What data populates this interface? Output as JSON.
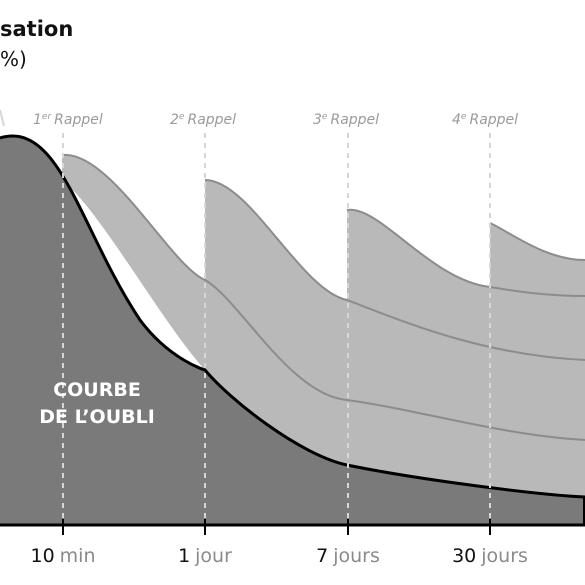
{
  "chart_data": {
    "type": "area",
    "title_visible": "sation",
    "ylabel_visible": "%)",
    "x_ticks": [
      {
        "value": "10",
        "unit": "min"
      },
      {
        "value": "1",
        "unit": "jour"
      },
      {
        "value": "7",
        "unit": "jours"
      },
      {
        "value": "30",
        "unit": "jours"
      }
    ],
    "reminders": [
      {
        "num": "1",
        "sup": "er",
        "word": "Rappel"
      },
      {
        "num": "2",
        "sup": "e",
        "word": "Rappel"
      },
      {
        "num": "3",
        "sup": "e",
        "word": "Rappel"
      },
      {
        "num": "4",
        "sup": "e",
        "word": "Rappel"
      }
    ],
    "series_label_lines": [
      "COURBE",
      "DE L’OUBLI"
    ],
    "y_range": [
      0,
      100
    ],
    "grid": false,
    "colors": {
      "forgetting_fill": "#7a7a7a",
      "reminder_fill": "#b9b9b9",
      "reminder_stroke": "#8c8c8c",
      "forgetting_stroke": "#000000",
      "dashed_line": "#d6d6d6"
    }
  }
}
